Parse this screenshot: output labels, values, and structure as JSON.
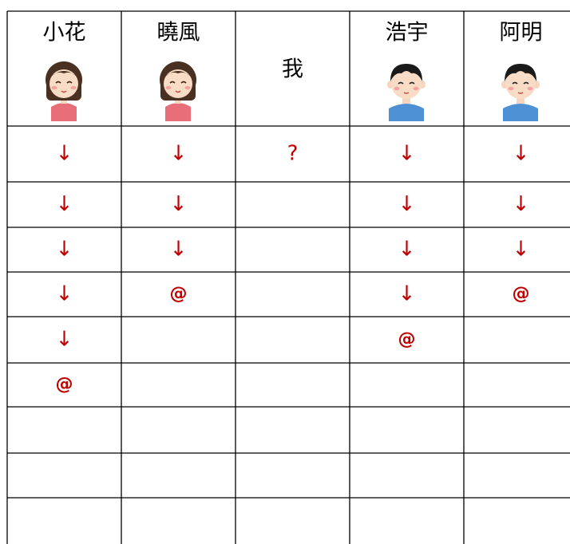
{
  "table": {
    "header": [
      "小花",
      "曉風",
      "我",
      "浩宇",
      "阿明"
    ],
    "rows": [
      [
        "↓",
        "↓",
        "?",
        "↓",
        "↓"
      ],
      [
        "↓",
        "↓",
        null,
        "↓",
        "↓"
      ],
      [
        "↓",
        "↓",
        null,
        "↓",
        "↓"
      ],
      [
        "↓",
        "@",
        null,
        "↓",
        "@"
      ],
      [
        "↓",
        null,
        null,
        "@",
        null
      ],
      [
        "@",
        null,
        null,
        null,
        null
      ],
      [
        null,
        null,
        null,
        null,
        null
      ],
      [
        null,
        null,
        null,
        null,
        null
      ],
      [
        null,
        null,
        null,
        null,
        null
      ]
    ]
  }
}
